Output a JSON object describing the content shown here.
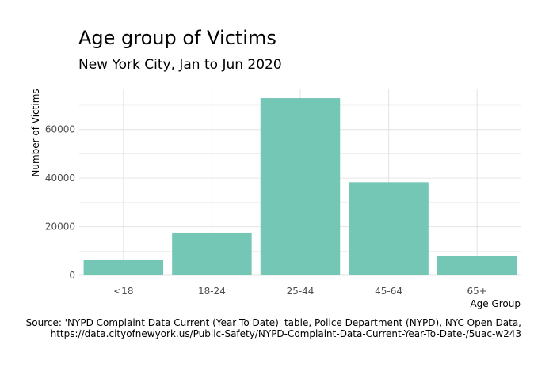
{
  "chart_data": {
    "type": "bar",
    "title": "Age group of Victims",
    "subtitle": "New York City, Jan to Jun 2020",
    "xlabel": "Age Group",
    "ylabel": "Number of Victims",
    "categories": [
      "<18",
      "18-24",
      "25-44",
      "45-64",
      "65+"
    ],
    "values": [
      6200,
      17600,
      72900,
      38300,
      8000
    ],
    "ylim": [
      0,
      76500
    ],
    "yticks": [
      0,
      20000,
      40000,
      60000
    ],
    "ytick_labels": [
      "0",
      "20000",
      "40000",
      "60000"
    ],
    "grid": true,
    "bar_color": "#74c6b5",
    "grid_color": "#e6e6e6",
    "caption_lines": [
      "Source: 'NYPD Complaint Data Current (Year To Date)' table, Police Department (NYPD), NYC Open Data,",
      "https://data.cityofnewyork.us/Public-Safety/NYPD-Complaint-Data-Current-Year-To-Date-/5uac-w243"
    ]
  }
}
